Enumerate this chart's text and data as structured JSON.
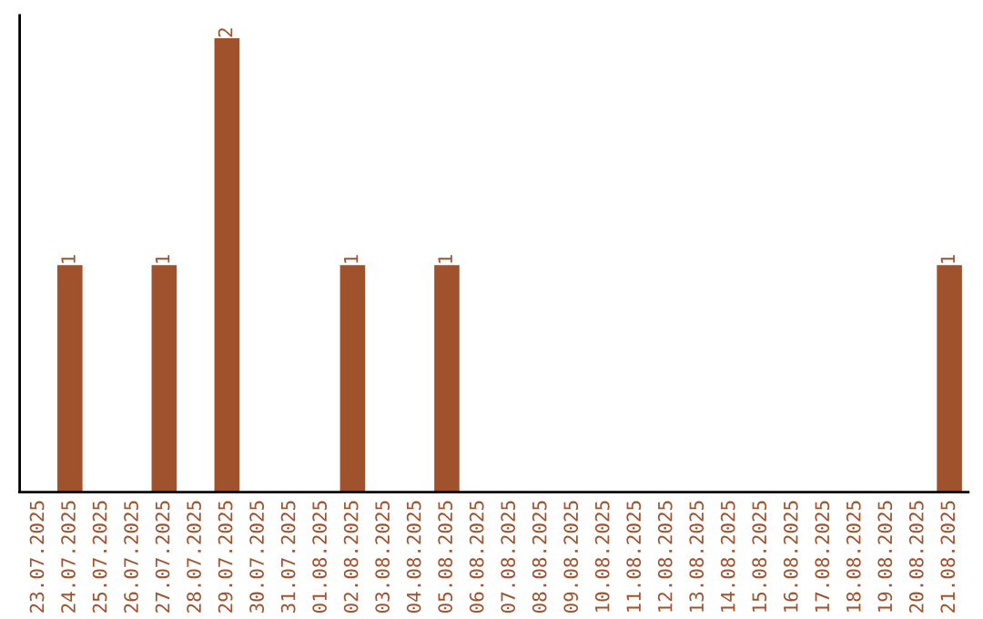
{
  "chart_data": {
    "type": "bar",
    "categories": [
      "23.07.2025",
      "24.07.2025",
      "25.07.2025",
      "26.07.2025",
      "27.07.2025",
      "28.07.2025",
      "29.07.2025",
      "30.07.2025",
      "31.07.2025",
      "01.08.2025",
      "02.08.2025",
      "03.08.2025",
      "04.08.2025",
      "05.08.2025",
      "06.08.2025",
      "07.08.2025",
      "08.08.2025",
      "09.08.2025",
      "10.08.2025",
      "11.08.2025",
      "12.08.2025",
      "13.08.2025",
      "14.08.2025",
      "15.08.2025",
      "16.08.2025",
      "17.08.2025",
      "18.08.2025",
      "19.08.2025",
      "20.08.2025",
      "21.08.2025"
    ],
    "values": [
      0,
      1,
      0,
      0,
      1,
      0,
      2,
      0,
      0,
      0,
      1,
      0,
      0,
      1,
      0,
      0,
      0,
      0,
      0,
      0,
      0,
      0,
      0,
      0,
      0,
      0,
      0,
      0,
      0,
      1
    ],
    "value_labels": [
      null,
      "1",
      null,
      null,
      "1",
      null,
      "2",
      null,
      null,
      null,
      "1",
      null,
      null,
      "1",
      null,
      null,
      null,
      null,
      null,
      null,
      null,
      null,
      null,
      null,
      null,
      null,
      null,
      null,
      null,
      "1"
    ],
    "color": "#a0522d",
    "tick_labels": "x",
    "grid": false,
    "legend": false
  }
}
